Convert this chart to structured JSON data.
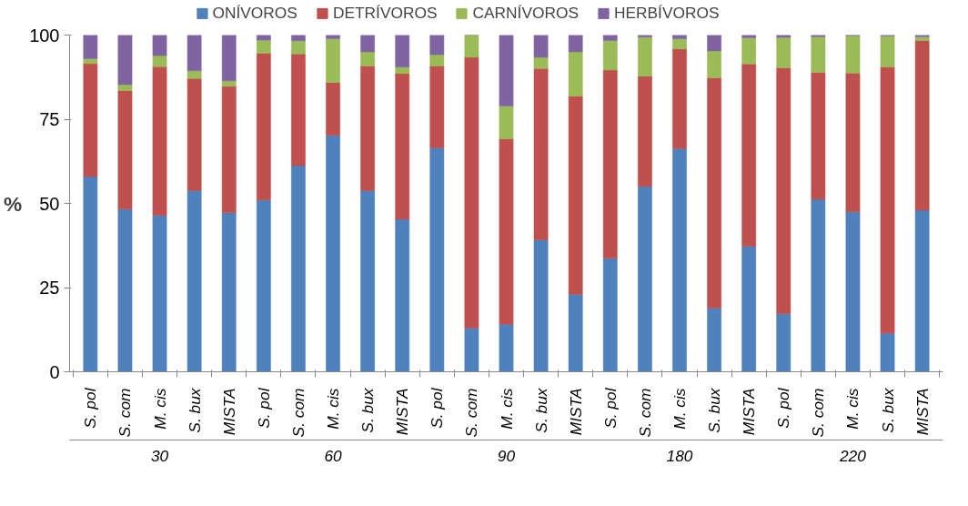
{
  "chart_data": {
    "type": "bar",
    "stacked": true,
    "ylabel": "%",
    "categories": [
      "S. pol",
      "S. com",
      "M. cis",
      "S. bux",
      "MISTA",
      "S. pol",
      "S. com",
      "M. cis",
      "S. bux",
      "MISTA",
      "S. pol",
      "S. com",
      "M. cis",
      "S. bux",
      "MISTA",
      "S. pol",
      "S. com",
      "M. cis",
      "S. bux",
      "MISTA",
      "S. pol",
      "S. com",
      "M. cis",
      "S. bux",
      "MISTA"
    ],
    "annotations": [
      "30",
      "60",
      "90",
      "180",
      "220"
    ],
    "series": [
      {
        "name": "ONÍVOROS",
        "color": "#4f81bd",
        "values": [
          58,
          48.3,
          46.4,
          53.8,
          47.2,
          51,
          61.2,
          70.2,
          53.8,
          45.3,
          66.5,
          13,
          14.1,
          39.2,
          23,
          33.7,
          55,
          66.3,
          18.9,
          37.2,
          17.2,
          51.2,
          47.5,
          11.4,
          48
        ]
      },
      {
        "name": "DETRÍVOROS",
        "color": "#c0504d",
        "values": [
          33.5,
          35.2,
          44.2,
          33.3,
          37.6,
          43.6,
          33.2,
          15.7,
          37,
          43.3,
          24.3,
          80.4,
          55.1,
          50.9,
          58.9,
          55.9,
          32.8,
          29.6,
          68.4,
          54.2,
          73.1,
          37.7,
          41.2,
          79.1,
          50.4
        ]
      },
      {
        "name": "CARNÍVOROS",
        "color": "#9bbb59",
        "values": [
          1.5,
          1.8,
          3.3,
          2.3,
          1.6,
          3.9,
          3.9,
          13,
          4.2,
          1.9,
          3.4,
          6.6,
          9.7,
          3.3,
          13.1,
          8.8,
          11.6,
          3,
          8,
          7.8,
          9,
          10.6,
          11.1,
          9.2,
          1.1
        ]
      },
      {
        "name": "HERBÍVOROS",
        "color": "#8064a2",
        "values": [
          7,
          14.7,
          6.1,
          10.6,
          13.6,
          1.5,
          1.7,
          1.1,
          5,
          9.5,
          5.8,
          0,
          21.1,
          6.6,
          5,
          1.6,
          0.6,
          1.1,
          4.7,
          0.8,
          0.7,
          0.5,
          0.2,
          0.3,
          0.5
        ]
      }
    ],
    "ylim": [
      0,
      100
    ],
    "yticks": [
      0,
      25,
      50,
      75,
      100
    ],
    "grid": false,
    "legend": "top"
  }
}
